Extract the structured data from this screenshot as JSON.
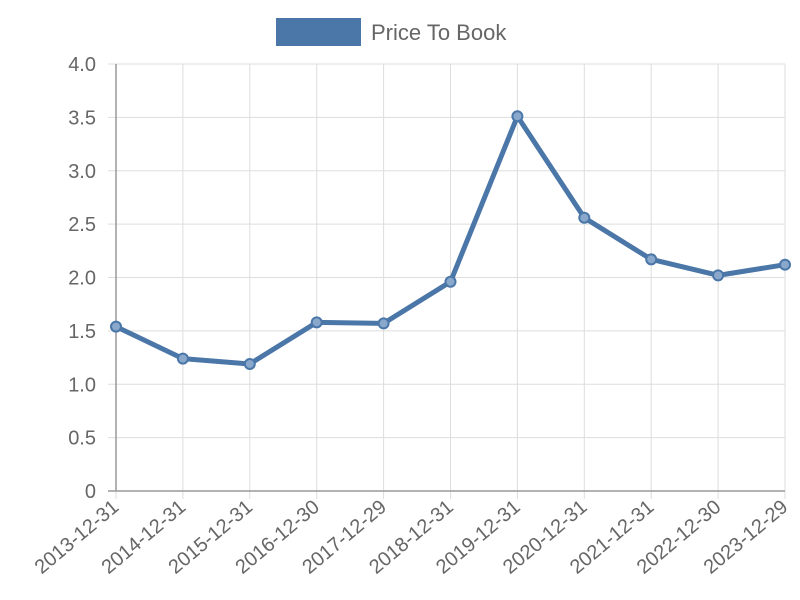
{
  "chart_data": {
    "type": "line",
    "categories": [
      "2013-12-31",
      "2014-12-31",
      "2015-12-31",
      "2016-12-30",
      "2017-12-29",
      "2018-12-31",
      "2019-12-31",
      "2020-12-31",
      "2021-12-31",
      "2022-12-30",
      "2023-12-29"
    ],
    "series": [
      {
        "name": "Price To Book",
        "color": "#4a76a8",
        "values": [
          1.54,
          1.24,
          1.19,
          1.58,
          1.57,
          1.96,
          3.51,
          2.56,
          2.17,
          2.02,
          2.12
        ]
      }
    ],
    "ylim": [
      0,
      4
    ],
    "yticks": [
      0,
      0.5,
      {
        "value": 1,
        "label": "1.0"
      },
      1.5,
      {
        "value": 2,
        "label": "2.0"
      },
      2.5,
      {
        "value": 3,
        "label": "3.0"
      },
      3.5,
      {
        "value": 4,
        "label": "4.0"
      }
    ],
    "grid": true,
    "legend": "top"
  }
}
